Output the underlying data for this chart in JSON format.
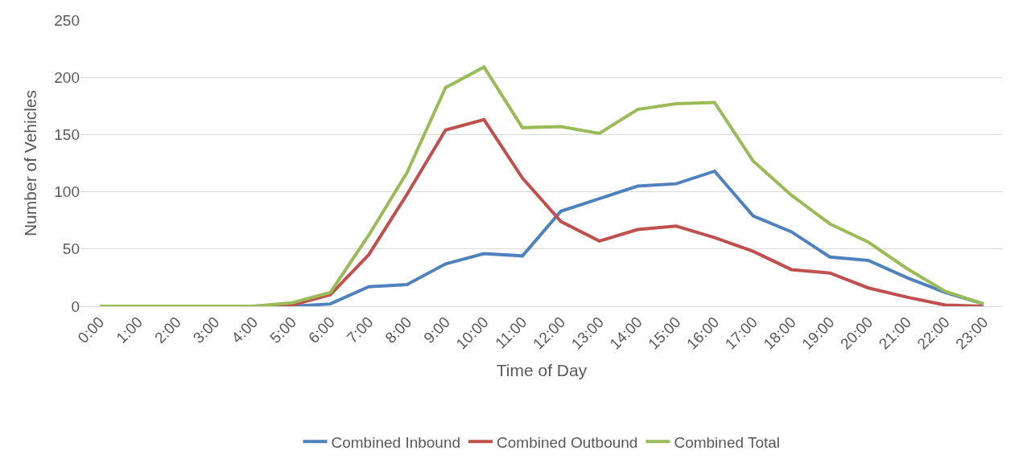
{
  "chart_data": {
    "type": "line",
    "xlabel": "Time of Day",
    "ylabel": "Number of Vehicles",
    "categories": [
      "0:00",
      "1:00",
      "2:00",
      "3:00",
      "4:00",
      "5:00",
      "6:00",
      "7:00",
      "8:00",
      "9:00",
      "10:00",
      "11:00",
      "12:00",
      "13:00",
      "14:00",
      "15:00",
      "16:00",
      "17:00",
      "18:00",
      "19:00",
      "20:00",
      "21:00",
      "22:00",
      "23:00"
    ],
    "series": [
      {
        "name": "Combined Inbound",
        "color": "#4f81bd",
        "values": [
          null,
          null,
          null,
          null,
          0,
          0,
          2,
          17,
          19,
          37,
          46,
          44,
          83,
          94,
          105,
          107,
          118,
          79,
          65,
          43,
          40,
          25,
          12,
          2
        ]
      },
      {
        "name": "Combined Outbound",
        "color": "#c0504d",
        "values": [
          null,
          null,
          null,
          null,
          0,
          1,
          10,
          45,
          98,
          154,
          163,
          112,
          74,
          57,
          67,
          70,
          60,
          48,
          32,
          29,
          16,
          8,
          1,
          0
        ]
      },
      {
        "name": "Combined Total",
        "color": "#9bbb59",
        "values": [
          0,
          0,
          0,
          0,
          0,
          3,
          12,
          62,
          117,
          191,
          209,
          156,
          157,
          151,
          172,
          177,
          178,
          127,
          97,
          72,
          56,
          33,
          13,
          2
        ]
      }
    ],
    "ylim": [
      0,
      250
    ],
    "yticks": [
      0,
      50,
      100,
      150,
      200,
      250
    ],
    "grid": "y",
    "legend": "bottom",
    "marker": "none",
    "line_style": "solid"
  }
}
